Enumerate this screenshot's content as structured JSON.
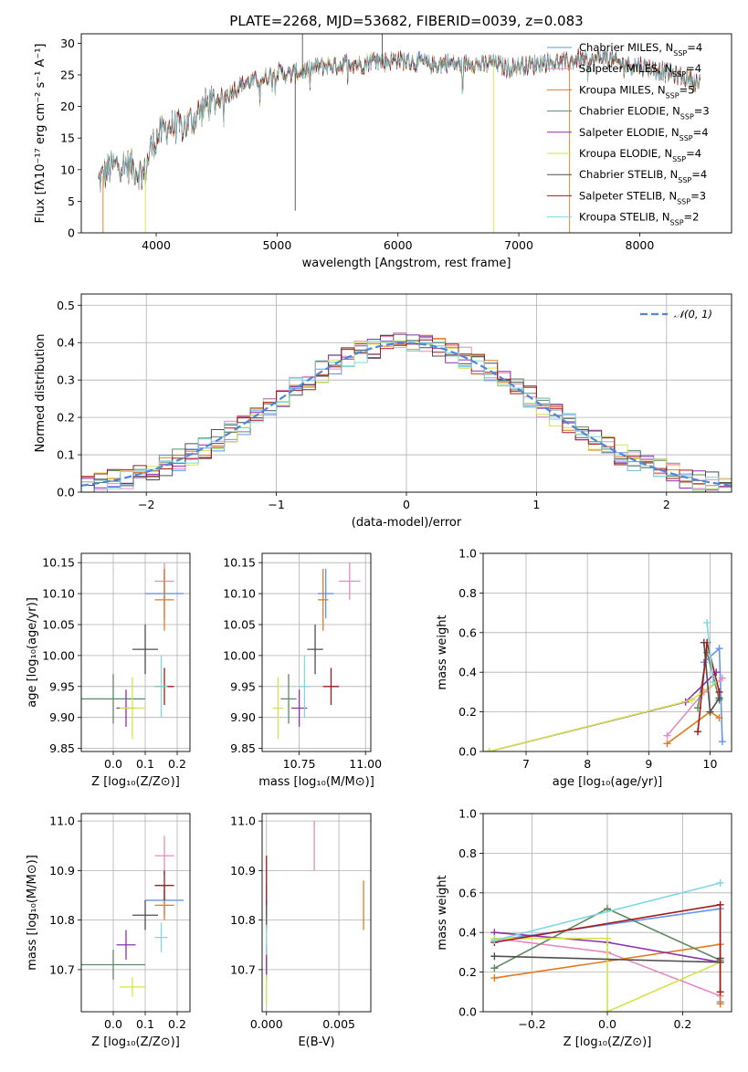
{
  "chart_data": [
    {
      "id": "spectrum",
      "type": "line",
      "title": "PLATE=2268, MJD=53682, FIBERID=0039, z=0.083",
      "xlabel": "wavelength [Angstrom, rest frame]",
      "ylabel": "Flux [fλ10⁻¹⁷ erg cm⁻² s⁻¹ A⁻¹]",
      "xlim": [
        3380,
        8760
      ],
      "ylim": [
        0,
        31.5
      ],
      "xticks": [
        4000,
        5000,
        6000,
        7000,
        8000
      ],
      "yticks": [
        0,
        5,
        10,
        15,
        20,
        25,
        30
      ],
      "grid": false,
      "legend_position": "top-right",
      "continuum": {
        "x": [
          3520,
          3600,
          3700,
          3800,
          3900,
          3950,
          4000,
          4100,
          4200,
          4300,
          4400,
          4500,
          4600,
          4700,
          4800,
          4900,
          5000,
          5100,
          5200,
          5300,
          5400,
          5500,
          5600,
          5700,
          5800,
          5900,
          6000,
          6100,
          6200,
          6300,
          6400,
          6500,
          6600,
          6700,
          6800,
          6900,
          7000,
          7100,
          7200,
          7300,
          7400,
          7500,
          7600,
          7700,
          7800,
          7900,
          8000,
          8100,
          8200,
          8300,
          8400,
          8500
        ],
        "y": [
          8,
          10,
          11,
          10.5,
          9,
          13,
          15,
          17,
          16.5,
          18,
          20,
          21,
          22,
          23.5,
          24,
          24.5,
          25.5,
          25,
          25.5,
          26,
          26.5,
          26.5,
          27,
          26.5,
          27.5,
          27,
          27.5,
          27,
          27,
          26.5,
          27,
          26.5,
          27,
          26.5,
          27,
          26,
          26.5,
          26.5,
          27,
          27,
          27,
          27.5,
          27,
          28,
          27,
          26.5,
          26.5,
          26,
          25.5,
          25,
          24.5,
          23.5
        ]
      },
      "series": [
        {
          "name": "Chabrier MILES, N_SSP=4",
          "color": "#6495ed"
        },
        {
          "name": "Salpeter MILES, N_SSP=4",
          "color": "#e78ac3"
        },
        {
          "name": "Kroupa MILES, N_SSP=5",
          "color": "#e5791c"
        },
        {
          "name": "Chabrier ELODIE, N_SSP=3",
          "color": "#5d8a62"
        },
        {
          "name": "Salpeter ELODIE, N_SSP=4",
          "color": "#8e2fb0"
        },
        {
          "name": "Kroupa ELODIE, N_SSP=4",
          "color": "#d4e34a"
        },
        {
          "name": "Chabrier STELIB, N_SSP=4",
          "color": "#4f4f4f"
        },
        {
          "name": "Salpeter STELIB, N_SSP=3",
          "color": "#a31a1a"
        },
        {
          "name": "Kroupa STELIB, N_SSP=2",
          "color": "#7dd8e0"
        }
      ],
      "legend_labels": [
        {
          "pre": "Chabrier MILES, N",
          "sub": "SSP",
          "post": "=4"
        },
        {
          "pre": "Salpeter MILES, N",
          "sub": "SSP",
          "post": "=4"
        },
        {
          "pre": "Kroupa MILES, N",
          "sub": "SSP",
          "post": "=5"
        },
        {
          "pre": "Chabrier ELODIE, N",
          "sub": "SSP",
          "post": "=3"
        },
        {
          "pre": "Salpeter ELODIE, N",
          "sub": "SSP",
          "post": "=4"
        },
        {
          "pre": "Kroupa ELODIE, N",
          "sub": "SSP",
          "post": "=4"
        },
        {
          "pre": "Chabrier STELIB, N",
          "sub": "SSP",
          "post": "=4"
        },
        {
          "pre": "Salpeter STELIB, N",
          "sub": "SSP",
          "post": "=3"
        },
        {
          "pre": "Kroupa STELIB, N",
          "sub": "SSP",
          "post": "=2"
        }
      ]
    },
    {
      "id": "residuals",
      "type": "line",
      "xlabel": "(data-model)/error",
      "ylabel": "Normed distribution",
      "xlim": [
        -2.5,
        2.5
      ],
      "ylim": [
        0,
        0.53
      ],
      "xticks": [
        -2,
        -1,
        0,
        1,
        2
      ],
      "yticks": [
        0.0,
        0.1,
        0.2,
        0.3,
        0.4,
        0.5
      ],
      "grid": true,
      "legend_position": "top-right",
      "gaussian_label": "𝒩(0, 1)",
      "gaussian_color": "#4f86d9",
      "bin_width": 0.1,
      "bin_start": -2.5
    },
    {
      "id": "age_vs_Z",
      "type": "scatter",
      "xlabel": "Z [log₁₀(Z/Z⊙)]",
      "ylabel": "age  [log₁₀(age/yr)]",
      "xlim": [
        -0.1,
        0.24
      ],
      "ylim": [
        9.845,
        10.165
      ],
      "xticks": [
        0.0,
        0.1,
        0.2
      ],
      "yticks": [
        9.85,
        9.9,
        9.95,
        10.0,
        10.05,
        10.1,
        10.15
      ],
      "grid": true,
      "points": [
        {
          "x": 0.16,
          "y": 10.1,
          "xerr": 0.06,
          "yerr": 0.04,
          "color": "#6495ed"
        },
        {
          "x": 0.16,
          "y": 10.12,
          "xerr": 0.03,
          "yerr": 0.03,
          "color": "#e78ac3"
        },
        {
          "x": 0.16,
          "y": 10.09,
          "xerr": 0.03,
          "yerr": 0.05,
          "color": "#e5791c"
        },
        {
          "x": 0.0,
          "y": 9.93,
          "xerr": 0.1,
          "yerr": 0.04,
          "color": "#5d8a62"
        },
        {
          "x": 0.04,
          "y": 9.915,
          "xerr": 0.03,
          "yerr": 0.03,
          "color": "#8e2fb0"
        },
        {
          "x": 0.06,
          "y": 9.915,
          "xerr": 0.04,
          "yerr": 0.05,
          "color": "#d4e34a"
        },
        {
          "x": 0.1,
          "y": 10.01,
          "xerr": 0.04,
          "yerr": 0.04,
          "color": "#4f4f4f"
        },
        {
          "x": 0.16,
          "y": 9.95,
          "xerr": 0.03,
          "yerr": 0.03,
          "color": "#a31a1a"
        },
        {
          "x": 0.15,
          "y": 9.95,
          "xerr": 0.02,
          "yerr": 0.05,
          "color": "#7dd8e0"
        }
      ]
    },
    {
      "id": "age_vs_mass",
      "type": "scatter",
      "xlabel": "mass [log₁₀(M/M⊙)]",
      "xlim": [
        10.61,
        11.02
      ],
      "ylim": [
        9.845,
        10.165
      ],
      "xticks": [
        10.75,
        11.0
      ],
      "xtick_labels": [
        "10.75",
        "11.00"
      ],
      "yticks": [
        9.85,
        9.9,
        9.95,
        10.0,
        10.05,
        10.1,
        10.15
      ],
      "grid": true,
      "points": [
        {
          "x": 10.85,
          "y": 10.1,
          "xerr": 0.03,
          "yerr": 0.04,
          "color": "#6495ed"
        },
        {
          "x": 10.94,
          "y": 10.12,
          "xerr": 0.04,
          "yerr": 0.03,
          "color": "#e78ac3"
        },
        {
          "x": 10.84,
          "y": 10.09,
          "xerr": 0.02,
          "yerr": 0.05,
          "color": "#e5791c"
        },
        {
          "x": 10.71,
          "y": 9.93,
          "xerr": 0.03,
          "yerr": 0.04,
          "color": "#5d8a62"
        },
        {
          "x": 10.75,
          "y": 9.915,
          "xerr": 0.03,
          "yerr": 0.03,
          "color": "#8e2fb0"
        },
        {
          "x": 10.67,
          "y": 9.915,
          "xerr": 0.02,
          "yerr": 0.05,
          "color": "#d4e34a"
        },
        {
          "x": 10.81,
          "y": 10.01,
          "xerr": 0.03,
          "yerr": 0.04,
          "color": "#4f4f4f"
        },
        {
          "x": 10.87,
          "y": 9.95,
          "xerr": 0.03,
          "yerr": 0.03,
          "color": "#a31a1a"
        },
        {
          "x": 10.77,
          "y": 9.95,
          "xerr": 0.02,
          "yerr": 0.05,
          "color": "#7dd8e0"
        }
      ]
    },
    {
      "id": "weight_vs_age",
      "type": "line",
      "xlabel": "age  [log₁₀(age/yr)]",
      "ylabel": "mass weight",
      "xlim": [
        6.3,
        10.35
      ],
      "ylim": [
        0,
        1.0
      ],
      "xticks": [
        7,
        8,
        9,
        10
      ],
      "yticks": [
        0.0,
        0.2,
        0.4,
        0.6,
        0.8,
        1.0
      ],
      "grid": true,
      "series": [
        {
          "color": "#6495ed",
          "x": [
            9.9,
            10.15,
            10.2
          ],
          "y": [
            0.45,
            0.52,
            0.05
          ]
        },
        {
          "color": "#e78ac3",
          "x": [
            9.3,
            9.9,
            10.2
          ],
          "y": [
            0.08,
            0.3,
            0.37
          ]
        },
        {
          "color": "#e5791c",
          "x": [
            9.3,
            10.0,
            10.15
          ],
          "y": [
            0.04,
            0.2,
            0.17
          ]
        },
        {
          "color": "#5d8a62",
          "x": [
            9.8,
            9.95,
            10.15
          ],
          "y": [
            0.22,
            0.5,
            0.26
          ]
        },
        {
          "color": "#8e2fb0",
          "x": [
            6.4,
            9.6,
            10.1
          ],
          "y": [
            0.0,
            0.25,
            0.4
          ]
        },
        {
          "color": "#d4e34a",
          "x": [
            6.4,
            9.7,
            10.1
          ],
          "y": [
            0.0,
            0.26,
            0.35
          ]
        },
        {
          "color": "#4f4f4f",
          "x": [
            9.9,
            10.0,
            10.15
          ],
          "y": [
            0.55,
            0.2,
            0.27
          ]
        },
        {
          "color": "#a31a1a",
          "x": [
            9.8,
            9.95,
            10.15
          ],
          "y": [
            0.1,
            0.55,
            0.3
          ]
        },
        {
          "color": "#7dd8e0",
          "x": [
            9.95,
            10.05
          ],
          "y": [
            0.65,
            0.35
          ]
        }
      ]
    },
    {
      "id": "mass_vs_Z",
      "type": "scatter",
      "xlabel": "Z [log₁₀(Z/Z⊙)]",
      "ylabel": "mass [log₁₀(M/M⊙)]",
      "xlim": [
        -0.1,
        0.24
      ],
      "ylim": [
        10.615,
        11.015
      ],
      "xticks": [
        0.0,
        0.1,
        0.2
      ],
      "yticks": [
        10.7,
        10.8,
        10.9,
        11.0
      ],
      "grid": true,
      "points": [
        {
          "x": 0.16,
          "y": 10.84,
          "xerr": 0.06,
          "yerr": 0.03,
          "color": "#6495ed"
        },
        {
          "x": 0.16,
          "y": 10.93,
          "xerr": 0.03,
          "yerr": 0.04,
          "color": "#e78ac3"
        },
        {
          "x": 0.16,
          "y": 10.83,
          "xerr": 0.03,
          "yerr": 0.03,
          "color": "#e5791c"
        },
        {
          "x": 0.0,
          "y": 10.71,
          "xerr": 0.1,
          "yerr": 0.03,
          "color": "#5d8a62"
        },
        {
          "x": 0.04,
          "y": 10.75,
          "xerr": 0.03,
          "yerr": 0.03,
          "color": "#8e2fb0"
        },
        {
          "x": 0.06,
          "y": 10.665,
          "xerr": 0.04,
          "yerr": 0.02,
          "color": "#d4e34a"
        },
        {
          "x": 0.1,
          "y": 10.81,
          "xerr": 0.04,
          "yerr": 0.03,
          "color": "#4f4f4f"
        },
        {
          "x": 0.16,
          "y": 10.87,
          "xerr": 0.03,
          "yerr": 0.03,
          "color": "#a31a1a"
        },
        {
          "x": 0.15,
          "y": 10.765,
          "xerr": 0.02,
          "yerr": 0.03,
          "color": "#7dd8e0"
        }
      ]
    },
    {
      "id": "mass_vs_ebv",
      "type": "scatter",
      "xlabel": "E(B-V)",
      "xlim": [
        -0.0003,
        0.0072
      ],
      "ylim": [
        10.615,
        11.015
      ],
      "xticks": [
        0.0,
        0.005
      ],
      "xtick_labels": [
        "0.000",
        "0.005"
      ],
      "yticks": [
        10.7,
        10.8,
        10.9,
        11.0
      ],
      "grid": true,
      "points": [
        {
          "x": 0.0,
          "y": 10.84,
          "xerr": 0,
          "yerr": 0.03,
          "color": "#6495ed"
        },
        {
          "x": 0.0033,
          "y": 10.95,
          "xerr": 0,
          "yerr": 0.05,
          "color": "#e78ac3"
        },
        {
          "x": 0.0067,
          "y": 10.83,
          "xerr": 0,
          "yerr": 0.05,
          "color": "#e5791c"
        },
        {
          "x": 0.0,
          "y": 10.71,
          "xerr": 0,
          "yerr": 0.03,
          "color": "#5d8a62"
        },
        {
          "x": 0.0,
          "y": 10.72,
          "xerr": 0,
          "yerr": 0.03,
          "color": "#8e2fb0"
        },
        {
          "x": 0.0,
          "y": 10.66,
          "xerr": 0,
          "yerr": 0.03,
          "color": "#d4e34a"
        },
        {
          "x": 0.0,
          "y": 10.81,
          "xerr": 0,
          "yerr": 0.03,
          "color": "#4f4f4f"
        },
        {
          "x": 0.0,
          "y": 10.88,
          "xerr": 0,
          "yerr": 0.05,
          "color": "#a31a1a"
        },
        {
          "x": 0.0,
          "y": 10.76,
          "xerr": 0,
          "yerr": 0.03,
          "color": "#7dd8e0"
        }
      ]
    },
    {
      "id": "weight_vs_Z",
      "type": "line",
      "xlabel": "Z [log₁₀(Z/Z⊙)]",
      "ylabel": "mass weight",
      "xlim": [
        -0.33,
        0.33
      ],
      "ylim": [
        0,
        1.0
      ],
      "xticks": [
        -0.2,
        0.0,
        0.2
      ],
      "xtick_labels": [
        "−0.2",
        "0.0",
        "0.2"
      ],
      "yticks": [
        0.0,
        0.2,
        0.4,
        0.6,
        0.8,
        1.0
      ],
      "grid": true,
      "series": [
        {
          "color": "#6495ed",
          "x": [
            -0.3,
            0.3,
            0.3
          ],
          "y": [
            0.36,
            0.52,
            0.05
          ]
        },
        {
          "color": "#e78ac3",
          "x": [
            -0.3,
            0.0,
            0.3
          ],
          "y": [
            0.37,
            0.3,
            0.08
          ]
        },
        {
          "color": "#e5791c",
          "x": [
            -0.3,
            0.3,
            0.3
          ],
          "y": [
            0.17,
            0.34,
            0.04
          ]
        },
        {
          "color": "#5d8a62",
          "x": [
            -0.3,
            0.0,
            0.3
          ],
          "y": [
            0.22,
            0.52,
            0.26
          ]
        },
        {
          "color": "#8e2fb0",
          "x": [
            -0.3,
            0.0,
            0.3
          ],
          "y": [
            0.4,
            0.35,
            0.25
          ]
        },
        {
          "color": "#d4e34a",
          "x": [
            -0.3,
            0.0,
            0.0,
            0.3
          ],
          "y": [
            0.37,
            0.37,
            0.0,
            0.25
          ]
        },
        {
          "color": "#4f4f4f",
          "x": [
            -0.3,
            0.3,
            0.3
          ],
          "y": [
            0.28,
            0.25,
            0.27
          ]
        },
        {
          "color": "#a31a1a",
          "x": [
            -0.3,
            0.3,
            0.3
          ],
          "y": [
            0.35,
            0.54,
            0.1
          ]
        },
        {
          "color": "#7dd8e0",
          "x": [
            -0.3,
            0.3
          ],
          "y": [
            0.36,
            0.65
          ]
        }
      ]
    }
  ]
}
